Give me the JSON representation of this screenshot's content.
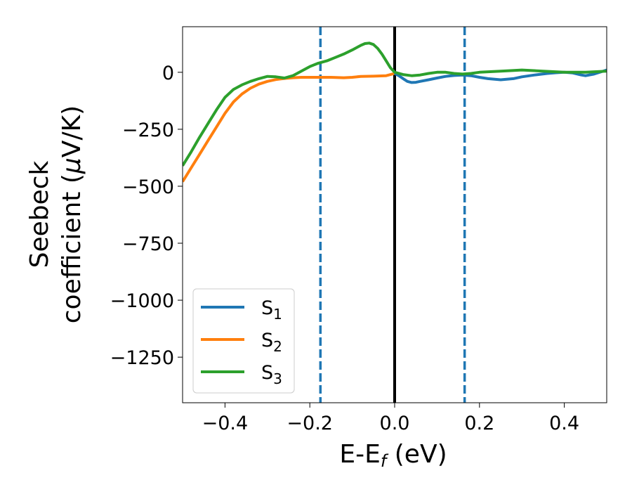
{
  "chart_data": {
    "type": "line",
    "xlabel": "E-E",
    "xlabel_sub": "f",
    "xlabel_unit": " (eV)",
    "ylabel_line1": "Seebeck",
    "ylabel_line2_pre": "coefficient  (",
    "ylabel_mu": "μ",
    "ylabel_line2_post": "V/K)",
    "xlim": [
      -0.5,
      0.5
    ],
    "ylim": [
      -1450,
      200
    ],
    "xticks": [
      -0.4,
      -0.2,
      0.0,
      0.2,
      0.4
    ],
    "xtick_labels": [
      "−0.4",
      "−0.2",
      "0.0",
      "0.2",
      "0.4"
    ],
    "yticks": [
      0,
      -250,
      -500,
      -750,
      -1000,
      -1250
    ],
    "ytick_labels": [
      "0",
      "−250",
      "−500",
      "−750",
      "−1000",
      "−1250"
    ],
    "grid": false,
    "legend_position": "lower-left",
    "vertical_lines": [
      {
        "x": -0.175,
        "style": "dashed",
        "color": "#1f77b4"
      },
      {
        "x": 0.0,
        "style": "solid",
        "color": "#000000"
      },
      {
        "x": 0.165,
        "style": "dashed",
        "color": "#1f77b4"
      }
    ],
    "series": [
      {
        "name": "S",
        "name_sub": "1",
        "color": "#1f77b4",
        "x": [
          0.0,
          0.01,
          0.02,
          0.03,
          0.04,
          0.05,
          0.06,
          0.08,
          0.1,
          0.12,
          0.14,
          0.16,
          0.18,
          0.2,
          0.22,
          0.25,
          0.28,
          0.3,
          0.33,
          0.36,
          0.38,
          0.4,
          0.42,
          0.44,
          0.45,
          0.47,
          0.5
        ],
        "y": [
          -5,
          -15,
          -28,
          -40,
          -45,
          -44,
          -40,
          -33,
          -25,
          -18,
          -14,
          -12,
          -15,
          -22,
          -28,
          -33,
          -28,
          -20,
          -12,
          -5,
          -2,
          0,
          -3,
          -12,
          -15,
          -8,
          10
        ]
      },
      {
        "name": "S",
        "name_sub": "2",
        "color": "#ff7f0e",
        "x": [
          -0.5,
          -0.48,
          -0.46,
          -0.44,
          -0.42,
          -0.4,
          -0.38,
          -0.36,
          -0.34,
          -0.32,
          -0.3,
          -0.28,
          -0.26,
          -0.24,
          -0.22,
          -0.2,
          -0.18,
          -0.15,
          -0.12,
          -0.1,
          -0.08,
          -0.05,
          -0.02,
          0.0
        ],
        "y": [
          -480,
          -420,
          -360,
          -300,
          -240,
          -180,
          -130,
          -95,
          -70,
          -52,
          -40,
          -32,
          -27,
          -24,
          -22,
          -22,
          -22,
          -22,
          -24,
          -22,
          -18,
          -17,
          -15,
          -5
        ]
      },
      {
        "name": "S",
        "name_sub": "3",
        "color": "#2ca02c",
        "x": [
          -0.5,
          -0.48,
          -0.46,
          -0.44,
          -0.42,
          -0.4,
          -0.38,
          -0.36,
          -0.34,
          -0.32,
          -0.3,
          -0.28,
          -0.26,
          -0.24,
          -0.22,
          -0.2,
          -0.18,
          -0.16,
          -0.14,
          -0.12,
          -0.1,
          -0.08,
          -0.07,
          -0.06,
          -0.05,
          -0.04,
          -0.03,
          -0.02,
          -0.01,
          0.0,
          0.02,
          0.04,
          0.06,
          0.08,
          0.1,
          0.12,
          0.14,
          0.16,
          0.18,
          0.2,
          0.25,
          0.3,
          0.35,
          0.4,
          0.45,
          0.5
        ],
        "y": [
          -410,
          -350,
          -285,
          -225,
          -165,
          -110,
          -75,
          -55,
          -40,
          -28,
          -18,
          -20,
          -25,
          -15,
          5,
          25,
          40,
          50,
          65,
          80,
          98,
          118,
          126,
          128,
          122,
          105,
          80,
          50,
          20,
          0,
          -10,
          -15,
          -12,
          -5,
          0,
          0,
          -5,
          -8,
          -5,
          0,
          5,
          10,
          5,
          0,
          0,
          5
        ]
      }
    ]
  }
}
